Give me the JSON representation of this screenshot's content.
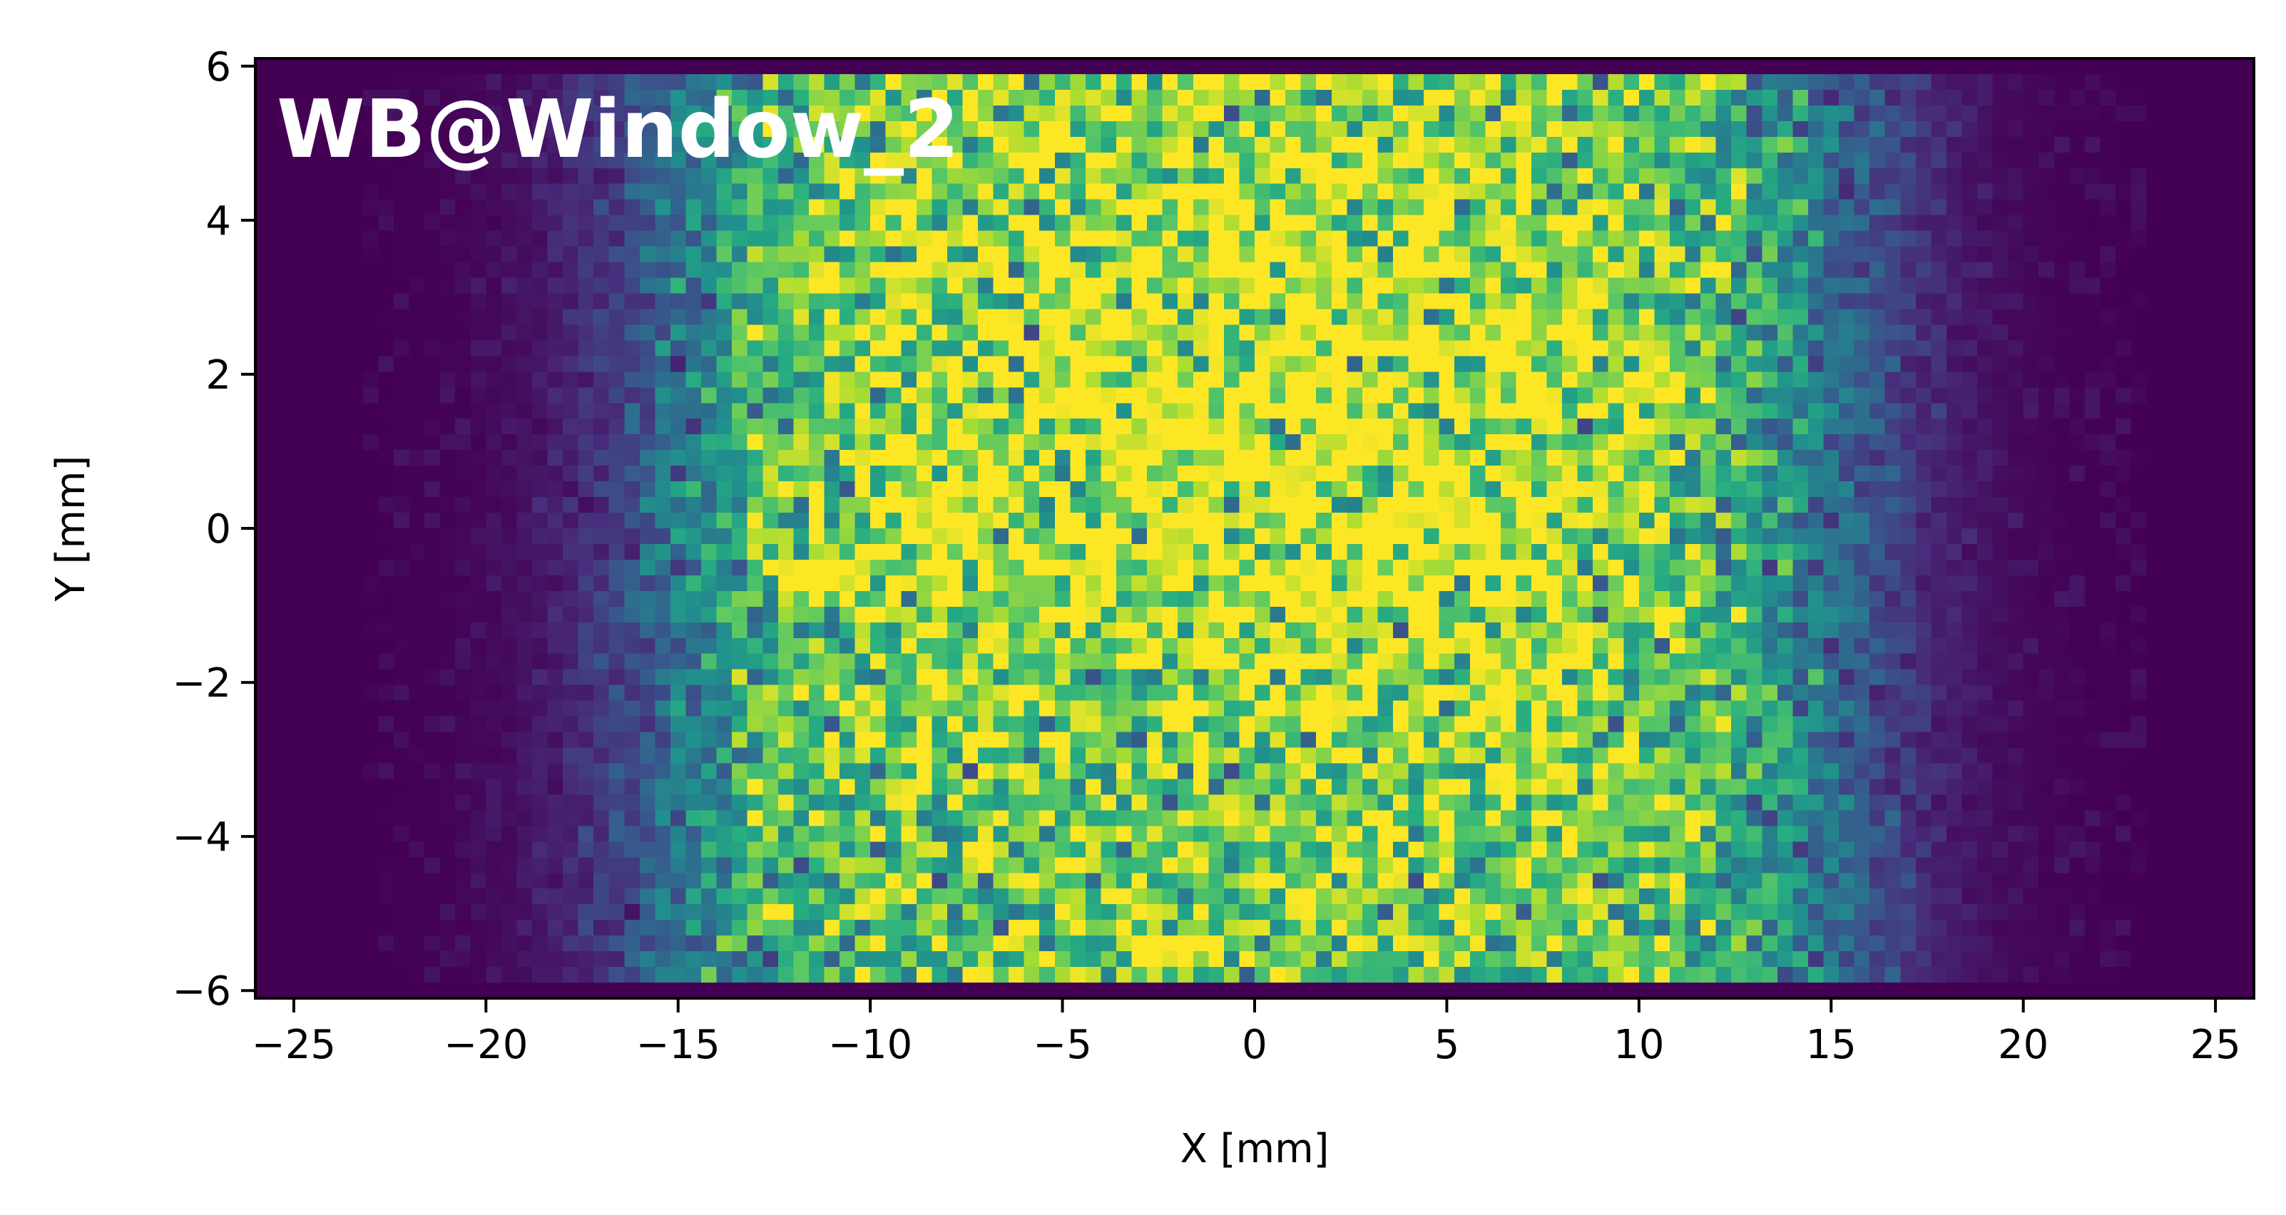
{
  "chart_data": {
    "type": "heatmap",
    "title": "",
    "annotation": "WB@Window_2",
    "xlabel": "X [mm]",
    "ylabel": "Y [mm]",
    "xlim": [
      -26,
      26
    ],
    "ylim": [
      -6.1,
      6.1
    ],
    "xticks": [
      -25,
      -20,
      -15,
      -10,
      -5,
      0,
      5,
      10,
      15,
      20,
      25
    ],
    "yticks": [
      -6,
      -4,
      -2,
      0,
      2,
      4,
      6
    ],
    "xtick_labels": [
      "−25",
      "−20",
      "−15",
      "−10",
      "−5",
      "0",
      "5",
      "10",
      "15",
      "20",
      "25"
    ],
    "ytick_labels": [
      "−6",
      "−4",
      "−2",
      "0",
      "2",
      "4",
      "6"
    ],
    "colormap": "viridis",
    "grid": false,
    "bins_x": 130,
    "bins_y": 60,
    "x_range": [
      -26,
      26
    ],
    "y_range": [
      -6.1,
      6.1
    ],
    "beam_extent_x": [
      -15,
      15
    ],
    "beam_edge_sigma_x": 2.6,
    "beam_extent_y": [
      -5.85,
      5.85
    ],
    "hotspots": [
      {
        "x": -9,
        "y": 0.5,
        "relative_level": 0.95
      },
      {
        "x": 6,
        "y": 0.5,
        "relative_level": 1.0
      },
      {
        "x": 1,
        "y": 2,
        "relative_level": 0.9
      }
    ],
    "background_color": "#440154"
  }
}
